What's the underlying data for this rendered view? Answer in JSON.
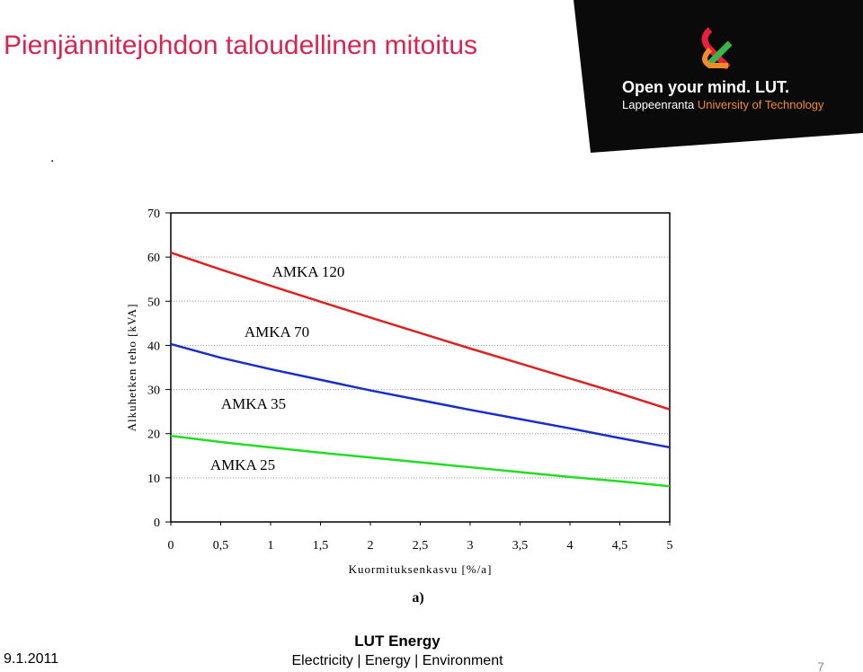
{
  "slide_title": "Pienjännitejohdon  taloudellinen mitoitus",
  "dot": ".",
  "logo": {
    "tagline": "Open your mind. LUT.",
    "place": "Lappeenranta",
    "university": "University of Technology"
  },
  "panel_label": "a)",
  "footer": {
    "date": "9.1.2011",
    "unit": "LUT Energy",
    "motto": "Electricity | Energy | Environment",
    "page": "7"
  },
  "chart_data": {
    "type": "line",
    "xlabel": "Kuormituksenkasvu [%/a]",
    "ylabel": "Alkuhetken teho [kVA]",
    "x": [
      0,
      0.5,
      1,
      1.5,
      2,
      2.5,
      3,
      3.5,
      4,
      4.5,
      5
    ],
    "series": [
      {
        "color": "#dd2222",
        "values": [
          61,
          57.2,
          53.5,
          49.9,
          46.3,
          42.8,
          39.3,
          35.9,
          32.5,
          29.1,
          25.5
        ]
      },
      {
        "color": "#1a2dc8",
        "values": [
          40.3,
          37.2,
          34.6,
          32.2,
          29.8,
          27.6,
          25.4,
          23.3,
          21.2,
          19,
          16.9
        ]
      },
      {
        "color": "#22dd22",
        "values": [
          19.5,
          18.1,
          16.9,
          15.7,
          14.6,
          13.5,
          12.4,
          11.3,
          10.2,
          9.2,
          8.1
        ]
      }
    ],
    "annotations": [
      "AMKA 120",
      "AMKA  70",
      "AMKA 35",
      "AMKA 25"
    ],
    "xlim": [
      0,
      5
    ],
    "ylim": [
      0,
      70
    ],
    "xticks": [
      0,
      {
        "value": 0.5,
        "label": "0,5"
      },
      1,
      {
        "value": 1.5,
        "label": "1,5"
      },
      2,
      {
        "value": 2.5,
        "label": "2,5"
      },
      3,
      {
        "value": 3.5,
        "label": "3,5"
      },
      4,
      {
        "value": 4.5,
        "label": "4,5"
      },
      5
    ],
    "yticks": [
      0,
      10,
      20,
      30,
      40,
      50,
      60,
      70
    ],
    "grid": true
  }
}
